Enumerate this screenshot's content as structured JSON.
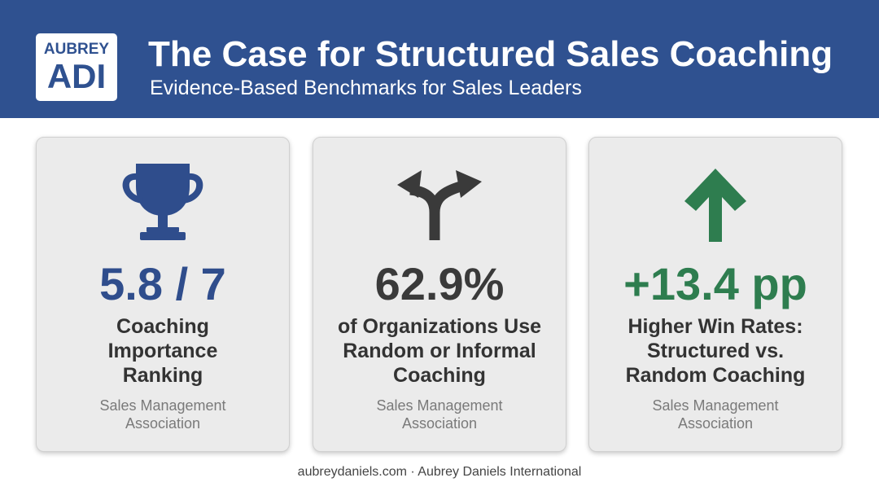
{
  "header": {
    "logo_top": "AUBREY",
    "logo_bottom": "ADI",
    "title": "The Case for Structured Sales Coaching",
    "subtitle": "Evidence-Based Benchmarks for Sales Leaders",
    "background_color": "#2f5190"
  },
  "cards": [
    {
      "icon": "trophy-icon",
      "value": "5.8 / 7",
      "value_color": "#2f4d8c",
      "description_lines": [
        "Coaching",
        "Importance",
        "Ranking"
      ],
      "source_lines": [
        "Sales Management",
        "Association"
      ]
    },
    {
      "icon": "fork-arrows-icon",
      "value": "62.9%",
      "value_color": "#3a3a3a",
      "description_lines": [
        "of Organizations Use",
        "Random or Informal",
        "Coaching"
      ],
      "source_lines": [
        "Sales Management",
        "Association"
      ]
    },
    {
      "icon": "up-arrow-icon",
      "value": "+13.4 pp",
      "value_color": "#2e7d4f",
      "description_lines": [
        "Higher Win Rates:",
        "Structured vs.",
        "Random Coaching"
      ],
      "source_lines": [
        "Sales Management",
        "Association"
      ]
    }
  ],
  "footer": {
    "text": "aubreydaniels.com · Aubrey Daniels International"
  }
}
